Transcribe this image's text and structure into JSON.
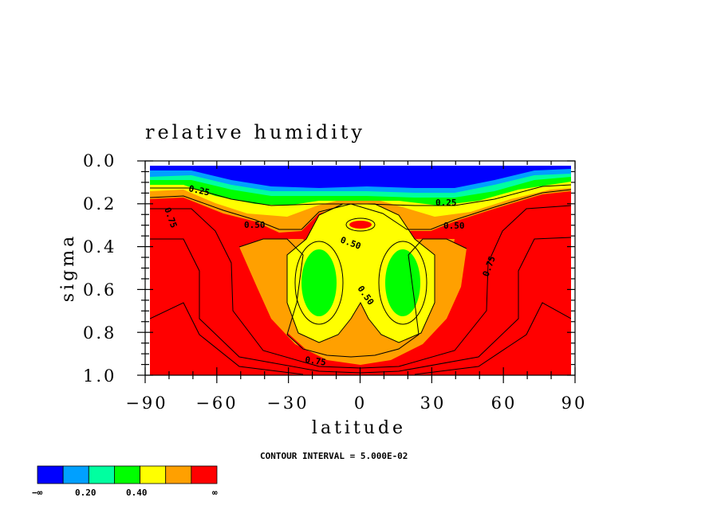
{
  "chart_data": {
    "type": "contour",
    "title": "relative humidity",
    "xlabel": "latitude",
    "ylabel": "sigma",
    "xlim": [
      -90,
      90
    ],
    "ylim": [
      1.0,
      0.0
    ],
    "x_ticks": [
      "−90",
      "−60",
      "−30",
      "0",
      "30",
      "60",
      "90"
    ],
    "y_ticks": [
      "0.0",
      "0.2",
      "0.4",
      "0.6",
      "0.8",
      "1.0"
    ],
    "contour_interval_text": "CONTOUR INTERVAL = 5.000E-02",
    "contour_labels": [
      {
        "text": "0.25",
        "lat": -71,
        "sigma": 0.13
      },
      {
        "text": "0.25",
        "lat": 37,
        "sigma": 0.2
      },
      {
        "text": "0.50",
        "lat": -43,
        "sigma": 0.3
      },
      {
        "text": "0.50",
        "lat": 42,
        "sigma": 0.31
      },
      {
        "text": "0.50",
        "lat": -3,
        "sigma": 0.38
      },
      {
        "text": "0.50",
        "lat": 3,
        "sigma": 0.62
      },
      {
        "text": "0.75",
        "lat": -78,
        "sigma": 0.28
      },
      {
        "text": "0.75",
        "lat": 57,
        "sigma": 0.5
      },
      {
        "text": "0.75",
        "lat": -18,
        "sigma": 0.92
      }
    ],
    "colorbar": {
      "colors": [
        "#0000ff",
        "#00a0ff",
        "#00ffa0",
        "#00ff00",
        "#ffff00",
        "#ffa000",
        "#ff0000"
      ],
      "labels": [
        "−∞",
        "0.20",
        "0.40",
        "∞"
      ]
    }
  }
}
